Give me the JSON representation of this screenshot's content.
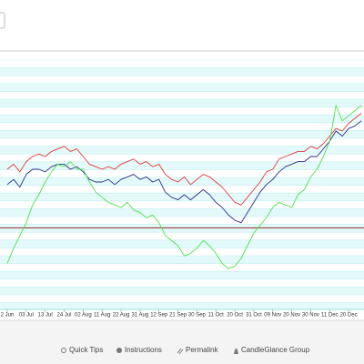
{
  "chart_data": {
    "type": "line",
    "categories": [
      "2 Jun",
      null,
      null,
      "03 Jul",
      null,
      null,
      "13 Jul",
      null,
      null,
      "24 Jul",
      null,
      null,
      "02 Aug",
      null,
      null,
      "11 Aug",
      null,
      null,
      "22 Aug",
      null,
      null,
      "31 Aug",
      null,
      null,
      "12 Sep",
      null,
      null,
      "21 Sep",
      null,
      null,
      "30 Sep",
      null,
      null,
      "11 Oct",
      null,
      null,
      "20 Oct",
      null,
      null,
      "31 Oct",
      null,
      null,
      "09 Nov",
      null,
      null,
      "20 Nov",
      null,
      null,
      "30 Nov",
      null,
      null,
      "11 Dec",
      null,
      null,
      "20 Dec",
      null,
      null
    ],
    "series": [
      {
        "color": "#e03a3a",
        "values": [
          55,
          57,
          54,
          58,
          60,
          61,
          60,
          62,
          63,
          64,
          62,
          63,
          60,
          57,
          56,
          55,
          56,
          55,
          57,
          58,
          59,
          57,
          58,
          56,
          57,
          53,
          51,
          50,
          52,
          49,
          51,
          53,
          52,
          50,
          48,
          45,
          42,
          41,
          44,
          47,
          50,
          54,
          55,
          59,
          60,
          61,
          62,
          62,
          64,
          63,
          65,
          68,
          71,
          70,
          73,
          75,
          77
        ]
      },
      {
        "color": "#2b2b8c",
        "values": [
          49,
          51,
          48,
          53,
          55,
          55,
          54,
          56,
          57,
          57,
          55,
          56,
          54,
          51,
          50,
          50,
          51,
          49,
          51,
          52,
          53,
          51,
          52,
          50,
          51,
          46,
          44,
          43,
          45,
          43,
          45,
          47,
          45,
          42,
          40,
          37,
          35,
          34,
          38,
          42,
          46,
          49,
          51,
          54,
          56,
          57,
          58,
          58,
          60,
          60,
          63,
          66,
          70,
          68,
          71,
          72,
          74
        ]
      },
      {
        "color": "#4fe04f",
        "values": [
          18,
          24,
          29,
          34,
          41,
          45,
          50,
          54,
          57,
          56,
          58,
          55,
          55,
          50,
          46,
          44,
          42,
          41,
          40,
          42,
          39,
          38,
          36,
          37,
          34,
          29,
          27,
          25,
          21,
          22,
          24,
          27,
          25,
          22,
          18,
          16,
          17,
          20,
          25,
          30,
          33,
          36,
          40,
          42,
          41,
          40,
          45,
          47,
          52,
          55,
          60,
          66,
          80,
          74,
          76,
          78,
          80
        ]
      }
    ],
    "reference_line": 32,
    "reference_color": "#8b2a2a",
    "ylim": [
      0,
      100
    ]
  },
  "footer": {
    "links": [
      "Quick Tips",
      "Instructions",
      "Permalink",
      "CandleGlance Group"
    ]
  }
}
